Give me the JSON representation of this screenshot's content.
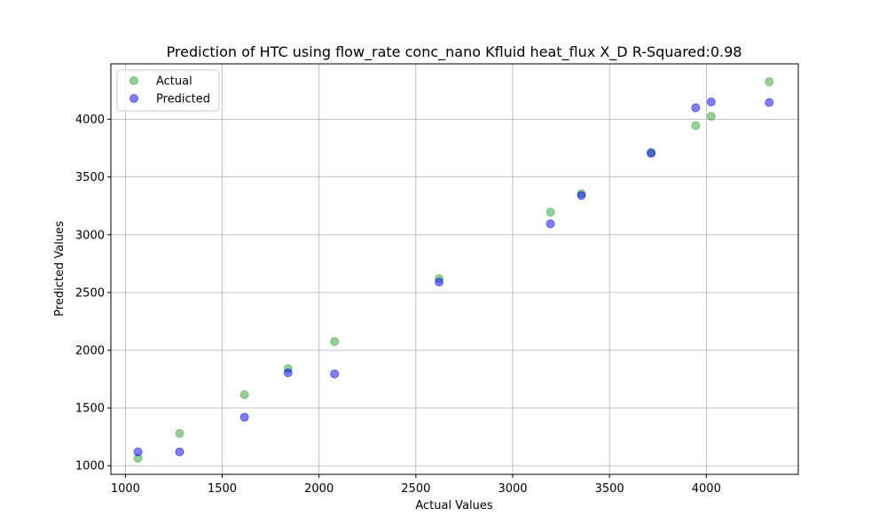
{
  "chart_data": {
    "type": "scatter",
    "title": "Prediction of HTC using flow_rate conc_nano Kfluid heat_flux X_D  R-Squared:0.98",
    "xlabel": "Actual Values",
    "ylabel": "Predicted Values",
    "xlim": [
      925,
      4475
    ],
    "ylim": [
      925,
      4480
    ],
    "xticks": [
      1000,
      1500,
      2000,
      2500,
      3000,
      3500,
      4000
    ],
    "yticks": [
      1000,
      1500,
      2000,
      2500,
      3000,
      3500,
      4000
    ],
    "grid": true,
    "legend": "top-left",
    "series": [
      {
        "name": "Actual",
        "color": "#2ca02c",
        "points": [
          [
            1065,
            1065
          ],
          [
            1280,
            1280
          ],
          [
            1615,
            1615
          ],
          [
            1840,
            1840
          ],
          [
            2080,
            2075
          ],
          [
            2620,
            2620
          ],
          [
            3195,
            3195
          ],
          [
            3355,
            3355
          ],
          [
            3715,
            3715
          ],
          [
            3945,
            3945
          ],
          [
            4025,
            4025
          ],
          [
            4325,
            4325
          ]
        ]
      },
      {
        "name": "Predicted",
        "color": "#0000ff",
        "points": [
          [
            1065,
            1120
          ],
          [
            1280,
            1120
          ],
          [
            1615,
            1420
          ],
          [
            1840,
            1805
          ],
          [
            2080,
            1795
          ],
          [
            2620,
            2590
          ],
          [
            3195,
            3095
          ],
          [
            3355,
            3340
          ],
          [
            3715,
            3705
          ],
          [
            3945,
            4100
          ],
          [
            4025,
            4150
          ],
          [
            4325,
            4145
          ]
        ]
      }
    ]
  }
}
